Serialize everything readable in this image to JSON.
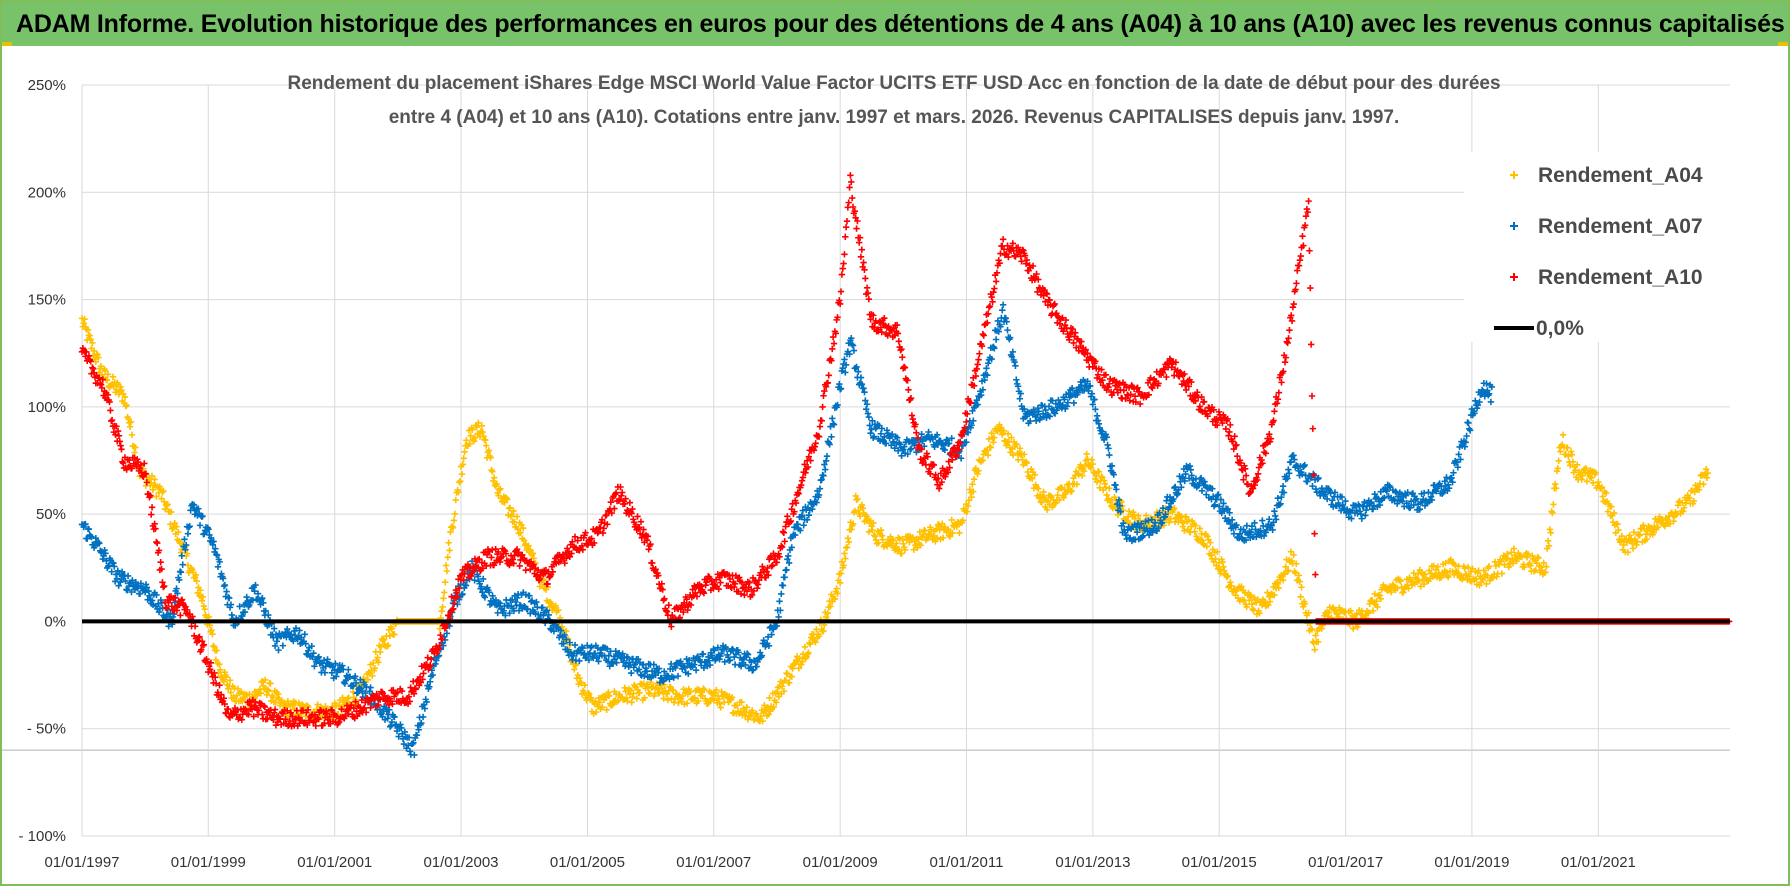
{
  "header": {
    "banner_title": "ADAM Informe. Evolution historique des performances en euros pour des détentions de 4 ans (A04) à 10 ans (A10) avec les revenus connus capitalisés"
  },
  "colors": {
    "banner_bg": "#78c26a",
    "A04": "#ffc000",
    "A07": "#0070c0",
    "A10": "#ff0000",
    "zero_line": "#000000"
  },
  "chart_data": {
    "type": "scatter",
    "title_line1": "Rendement du placement iShares Edge MSCI World Value Factor UCITS ETF USD Acc en fonction de la date de début pour des durées",
    "title_line2": "entre 4 (A04) et 10 ans (A10). Cotations entre janv. 1997 et mars. 2026. Revenus CAPITALISES depuis janv. 1997.",
    "xlabel": "",
    "ylabel": "",
    "x_range": [
      "1997-01-01",
      "2023-02-01"
    ],
    "y_range": [
      -100,
      250
    ],
    "y_ticks": [
      250,
      200,
      150,
      100,
      50,
      0,
      -50,
      -100
    ],
    "y_tick_labels": [
      "250%",
      "200%",
      "150%",
      "100%",
      "50%",
      "0%",
      "- 50%",
      "- 100%"
    ],
    "x_ticks": [
      "01/01/1997",
      "01/01/1999",
      "01/01/2001",
      "01/01/2003",
      "01/01/2005",
      "01/01/2007",
      "01/01/2009",
      "01/01/2011",
      "01/01/2013",
      "01/01/2015",
      "01/01/2017",
      "01/01/2019",
      "01/01/2021"
    ],
    "grid": true,
    "marker": "+",
    "legend_position": "top-right",
    "series": [
      {
        "name": "Rendement_A04",
        "color": "#ffc000",
        "points": [
          [
            "1997-01-01",
            140
          ],
          [
            "1997-05-01",
            115
          ],
          [
            "1997-09-01",
            105
          ],
          [
            "1997-12-01",
            70
          ],
          [
            "1998-04-01",
            60
          ],
          [
            "1998-08-01",
            35
          ],
          [
            "1998-12-01",
            10
          ],
          [
            "1999-03-01",
            -20
          ],
          [
            "1999-06-01",
            -35
          ],
          [
            "1999-09-01",
            -36
          ],
          [
            "1999-12-01",
            -30
          ],
          [
            "2000-03-01",
            -40
          ],
          [
            "2000-08-01",
            -42
          ],
          [
            "2001-01-01",
            -42
          ],
          [
            "2001-06-01",
            -33
          ],
          [
            "2001-10-01",
            -12
          ],
          [
            "2002-01-01",
            0
          ],
          [
            "2002-05-01",
            0
          ],
          [
            "2002-09-01",
            0
          ],
          [
            "2002-11-01",
            40
          ],
          [
            "2003-02-01",
            85
          ],
          [
            "2003-05-01",
            90
          ],
          [
            "2003-08-01",
            60
          ],
          [
            "2003-12-01",
            45
          ],
          [
            "2004-04-01",
            20
          ],
          [
            "2004-08-01",
            0
          ],
          [
            "2004-11-01",
            -25
          ],
          [
            "2005-02-01",
            -40
          ],
          [
            "2005-07-01",
            -35
          ],
          [
            "2006-01-01",
            -32
          ],
          [
            "2006-07-01",
            -35
          ],
          [
            "2007-01-01",
            -35
          ],
          [
            "2007-06-01",
            -40
          ],
          [
            "2007-10-01",
            -45
          ],
          [
            "2008-02-01",
            -30
          ],
          [
            "2008-06-01",
            -15
          ],
          [
            "2008-10-01",
            0
          ],
          [
            "2009-01-01",
            20
          ],
          [
            "2009-04-01",
            55
          ],
          [
            "2009-08-01",
            40
          ],
          [
            "2010-01-01",
            35
          ],
          [
            "2010-06-01",
            40
          ],
          [
            "2010-12-01",
            45
          ],
          [
            "2011-03-01",
            70
          ],
          [
            "2011-07-01",
            90
          ],
          [
            "2011-12-01",
            75
          ],
          [
            "2012-04-01",
            55
          ],
          [
            "2012-08-01",
            60
          ],
          [
            "2012-12-01",
            75
          ],
          [
            "2013-05-01",
            55
          ],
          [
            "2013-10-01",
            45
          ],
          [
            "2014-04-01",
            50
          ],
          [
            "2014-10-01",
            40
          ],
          [
            "2015-04-01",
            15
          ],
          [
            "2015-09-01",
            5
          ],
          [
            "2016-03-01",
            30
          ],
          [
            "2016-07-01",
            -10
          ],
          [
            "2016-10-01",
            5
          ],
          [
            "2017-03-01",
            0
          ],
          [
            "2017-09-01",
            15
          ],
          [
            "2018-03-01",
            20
          ],
          [
            "2018-09-01",
            25
          ],
          [
            "2019-03-01",
            20
          ],
          [
            "2019-09-01",
            30
          ],
          [
            "2020-03-01",
            25
          ],
          [
            "2020-06-01",
            85
          ],
          [
            "2020-09-01",
            70
          ],
          [
            "2021-01-01",
            65
          ],
          [
            "2021-06-01",
            35
          ],
          [
            "2021-12-01",
            45
          ],
          [
            "2022-06-01",
            55
          ],
          [
            "2022-10-01",
            70
          ]
        ]
      },
      {
        "name": "Rendement_A07",
        "color": "#0070c0",
        "points": [
          [
            "1997-01-01",
            45
          ],
          [
            "1997-04-01",
            35
          ],
          [
            "1997-08-01",
            20
          ],
          [
            "1998-01-01",
            15
          ],
          [
            "1998-06-01",
            0
          ],
          [
            "1998-10-01",
            55
          ],
          [
            "1999-02-01",
            35
          ],
          [
            "1999-06-01",
            0
          ],
          [
            "1999-10-01",
            15
          ],
          [
            "2000-02-01",
            -10
          ],
          [
            "2000-06-01",
            -5
          ],
          [
            "2000-10-01",
            -20
          ],
          [
            "2001-03-01",
            -25
          ],
          [
            "2001-08-01",
            -35
          ],
          [
            "2002-01-01",
            -50
          ],
          [
            "2002-04-01",
            -60
          ],
          [
            "2002-08-01",
            -20
          ],
          [
            "2002-12-01",
            10
          ],
          [
            "2003-03-01",
            25
          ],
          [
            "2003-08-01",
            5
          ],
          [
            "2004-01-01",
            10
          ],
          [
            "2004-06-01",
            0
          ],
          [
            "2004-10-01",
            -15
          ],
          [
            "2005-03-01",
            -15
          ],
          [
            "2005-09-01",
            -20
          ],
          [
            "2006-03-01",
            -25
          ],
          [
            "2006-09-01",
            -20
          ],
          [
            "2007-03-01",
            -15
          ],
          [
            "2007-09-01",
            -20
          ],
          [
            "2008-01-01",
            0
          ],
          [
            "2008-04-01",
            40
          ],
          [
            "2008-09-01",
            60
          ],
          [
            "2009-01-01",
            110
          ],
          [
            "2009-03-01",
            130
          ],
          [
            "2009-07-01",
            90
          ],
          [
            "2010-01-01",
            80
          ],
          [
            "2010-06-01",
            85
          ],
          [
            "2010-12-01",
            80
          ],
          [
            "2011-04-01",
            110
          ],
          [
            "2011-08-01",
            145
          ],
          [
            "2011-12-01",
            95
          ],
          [
            "2012-06-01",
            100
          ],
          [
            "2012-12-01",
            110
          ],
          [
            "2013-04-01",
            80
          ],
          [
            "2013-07-01",
            40
          ],
          [
            "2014-01-01",
            45
          ],
          [
            "2014-07-01",
            70
          ],
          [
            "2015-01-01",
            55
          ],
          [
            "2015-05-01",
            40
          ],
          [
            "2015-11-01",
            45
          ],
          [
            "2016-03-01",
            75
          ],
          [
            "2016-09-01",
            60
          ],
          [
            "2017-03-01",
            50
          ],
          [
            "2017-09-01",
            60
          ],
          [
            "2018-03-01",
            55
          ],
          [
            "2018-09-01",
            65
          ],
          [
            "2019-01-01",
            95
          ],
          [
            "2019-03-01",
            110
          ],
          [
            "2019-05-01",
            105
          ]
        ]
      },
      {
        "name": "Rendement_A10",
        "color": "#ff0000",
        "points": [
          [
            "1997-01-01",
            125
          ],
          [
            "1997-05-01",
            110
          ],
          [
            "1997-09-01",
            75
          ],
          [
            "1998-01-01",
            70
          ],
          [
            "1998-05-01",
            10
          ],
          [
            "1998-09-01",
            5
          ],
          [
            "1999-01-01",
            -20
          ],
          [
            "1999-05-01",
            -45
          ],
          [
            "1999-09-01",
            -40
          ],
          [
            "2000-02-01",
            -45
          ],
          [
            "2000-07-01",
            -45
          ],
          [
            "2001-01-01",
            -45
          ],
          [
            "2001-06-01",
            -40
          ],
          [
            "2001-10-01",
            -35
          ],
          [
            "2002-03-01",
            -35
          ],
          [
            "2002-08-01",
            -15
          ],
          [
            "2003-01-01",
            20
          ],
          [
            "2003-06-01",
            30
          ],
          [
            "2003-12-01",
            30
          ],
          [
            "2004-05-01",
            20
          ],
          [
            "2004-10-01",
            35
          ],
          [
            "2005-03-01",
            40
          ],
          [
            "2005-07-01",
            60
          ],
          [
            "2005-12-01",
            40
          ],
          [
            "2006-05-01",
            0
          ],
          [
            "2006-10-01",
            15
          ],
          [
            "2007-03-01",
            20
          ],
          [
            "2007-08-01",
            15
          ],
          [
            "2008-01-01",
            30
          ],
          [
            "2008-05-01",
            60
          ],
          [
            "2008-09-01",
            90
          ],
          [
            "2009-01-01",
            150
          ],
          [
            "2009-03-01",
            205
          ],
          [
            "2009-07-01",
            140
          ],
          [
            "2009-12-01",
            135
          ],
          [
            "2010-04-01",
            80
          ],
          [
            "2010-08-01",
            65
          ],
          [
            "2010-12-01",
            85
          ],
          [
            "2011-04-01",
            130
          ],
          [
            "2011-08-01",
            175
          ],
          [
            "2011-12-01",
            170
          ],
          [
            "2012-04-01",
            150
          ],
          [
            "2012-10-01",
            130
          ],
          [
            "2013-04-01",
            110
          ],
          [
            "2013-10-01",
            105
          ],
          [
            "2014-04-01",
            120
          ],
          [
            "2014-10-01",
            100
          ],
          [
            "2015-03-01",
            90
          ],
          [
            "2015-07-01",
            60
          ],
          [
            "2015-11-01",
            90
          ],
          [
            "2016-02-01",
            130
          ],
          [
            "2016-06-01",
            195
          ],
          [
            "2016-07-15",
            0
          ],
          [
            "2018-01-01",
            0
          ],
          [
            "2020-01-01",
            0
          ],
          [
            "2023-02-01",
            0
          ]
        ]
      }
    ],
    "legend_entries": [
      {
        "label": "Rendement_A04",
        "color": "#ffc000",
        "marker": "+"
      },
      {
        "label": "Rendement_A07",
        "color": "#0070c0",
        "marker": "+"
      },
      {
        "label": "Rendement_A10",
        "color": "#ff0000",
        "marker": "+"
      },
      {
        "label": "0,0%",
        "color": "#000000",
        "marker": "line"
      }
    ]
  }
}
